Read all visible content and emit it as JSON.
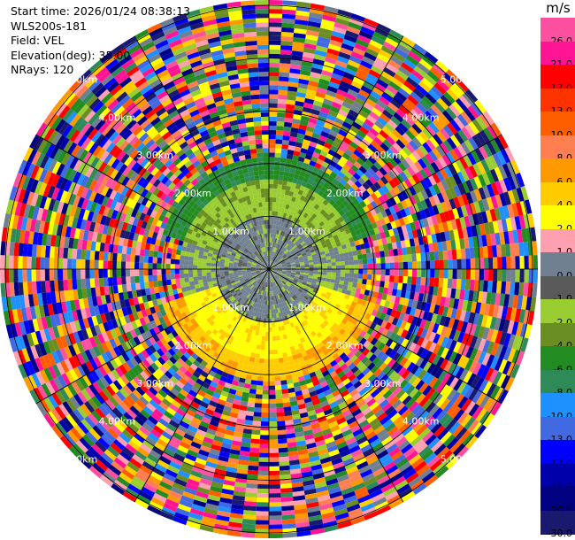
{
  "info": {
    "start_time": "Start time: 2026/01/24 08:38:13",
    "instrument": "WLS200s-181",
    "field": "Field: VEL",
    "elevation": "Elevation(deg): 35.00",
    "nrays": "NRays: 120"
  },
  "colorbar": {
    "unit": "m/s",
    "labels": [
      "26.0",
      "21.0",
      "17.0",
      "13.0",
      "10.0",
      "8.0",
      "6.0",
      "4.0",
      "2.0",
      "1.0",
      "0.0",
      "-1.0",
      "-2.0",
      "-4.0",
      "-6.0",
      "-8.0",
      "-10.0",
      "-13.0",
      "-17.0",
      "-21.0",
      "-26.0",
      "-30.0"
    ],
    "colors": [
      "#ff4fa0",
      "#ff1493",
      "#ff0000",
      "#ff3300",
      "#ff5e00",
      "#ff7f50",
      "#ff9900",
      "#ffcc00",
      "#ffff00",
      "#ff9fb0",
      "#708090",
      "#5a5a5a",
      "#9acd32",
      "#6b8e23",
      "#228b22",
      "#2e8b57",
      "#1e90ff",
      "#4169e1",
      "#0000ff",
      "#0000aa",
      "#000080",
      "#191970"
    ]
  },
  "ring_labels": [
    "1.00km",
    "2.00km",
    "3.00km",
    "4.00km",
    "5.00km"
  ]
}
